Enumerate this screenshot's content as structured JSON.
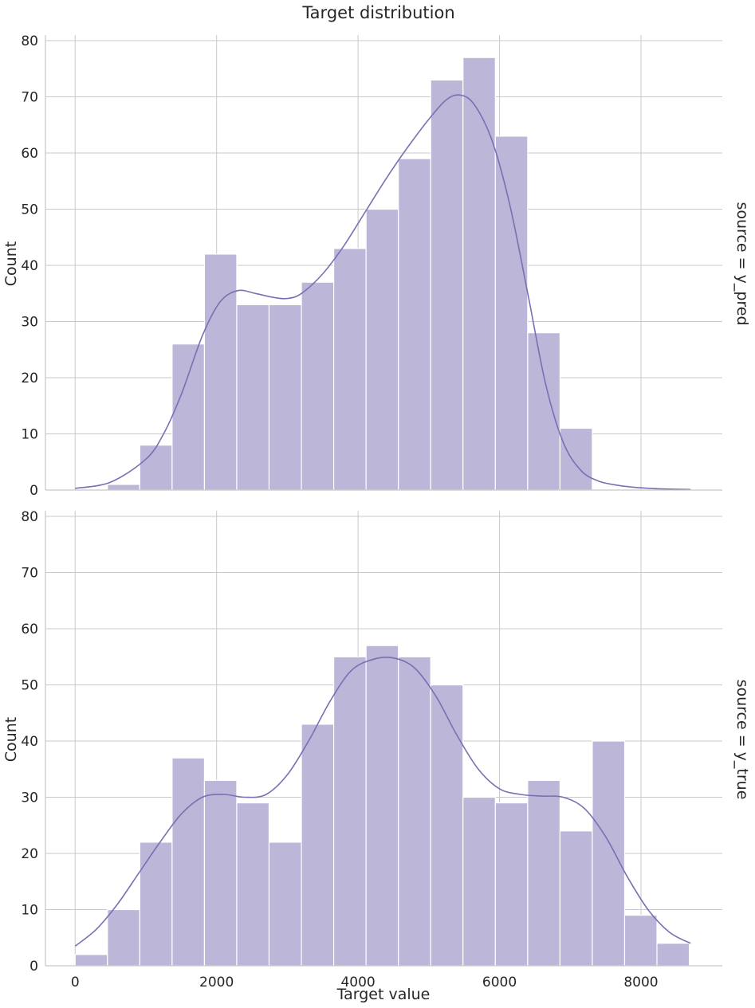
{
  "chart_data": {
    "type": "bar",
    "title": "Target distribution",
    "xlabel": "Target value",
    "ylabel": "Count",
    "xlim": [
      -420,
      9150
    ],
    "ylim": [
      0,
      81
    ],
    "x_ticks": [
      0,
      2000,
      4000,
      6000,
      8000
    ],
    "y_ticks": [
      0,
      10,
      20,
      30,
      40,
      50,
      60,
      70,
      80
    ],
    "grid": true,
    "colors": {
      "bar": "#bcb6d8",
      "kde": "#7a6fb3",
      "grid": "#c9c9c9",
      "axis": "#c6c6c6",
      "text": "#262626"
    },
    "bin_edges": [
      0,
      457,
      914,
      1371,
      1828,
      2285,
      2742,
      3199,
      3656,
      4113,
      4570,
      5027,
      5484,
      5941,
      6398,
      6855,
      7312,
      7769,
      8226,
      8683
    ],
    "facets": [
      {
        "label": "source = y_pred",
        "counts": [
          0,
          1,
          8,
          26,
          42,
          33,
          33,
          37,
          43,
          50,
          59,
          73,
          77,
          63,
          28,
          11,
          0,
          0,
          0
        ],
        "kde": {
          "x": [
            0,
            500,
            1000,
            1250,
            1500,
            1800,
            2050,
            2300,
            2550,
            2800,
            3000,
            3200,
            3500,
            3800,
            4100,
            4400,
            4700,
            5000,
            5250,
            5450,
            5650,
            5900,
            6150,
            6400,
            6650,
            6900,
            7150,
            7400,
            7700,
            8000,
            8300,
            8700
          ],
          "y": [
            0.3,
            1.4,
            5.5,
            10,
            17,
            27.5,
            33.5,
            35.5,
            35,
            34.3,
            34.1,
            35,
            38.5,
            43.5,
            49.5,
            55.5,
            61,
            66,
            69.5,
            70.3,
            68.5,
            62,
            50.5,
            35,
            19,
            8.5,
            3.5,
            1.6,
            0.8,
            0.4,
            0.2,
            0.1
          ]
        }
      },
      {
        "label": "source = y_true",
        "counts": [
          2,
          10,
          22,
          37,
          33,
          29,
          22,
          43,
          55,
          57,
          55,
          50,
          30,
          29,
          33,
          24,
          40,
          9,
          4
        ],
        "kde": {
          "x": [
            0,
            300,
            600,
            900,
            1200,
            1500,
            1800,
            2100,
            2400,
            2700,
            3000,
            3300,
            3600,
            3900,
            4200,
            4500,
            4800,
            5100,
            5400,
            5700,
            6000,
            6300,
            6600,
            6900,
            7200,
            7500,
            7800,
            8100,
            8400,
            8700
          ],
          "y": [
            3.5,
            6.5,
            11,
            16.5,
            22,
            27,
            30,
            30.5,
            30,
            30.5,
            34,
            40,
            47,
            52.5,
            54.5,
            54.8,
            53,
            48,
            41,
            35,
            31.5,
            30.5,
            30.2,
            30,
            28,
            23,
            16,
            10,
            6,
            4
          ]
        }
      }
    ]
  }
}
